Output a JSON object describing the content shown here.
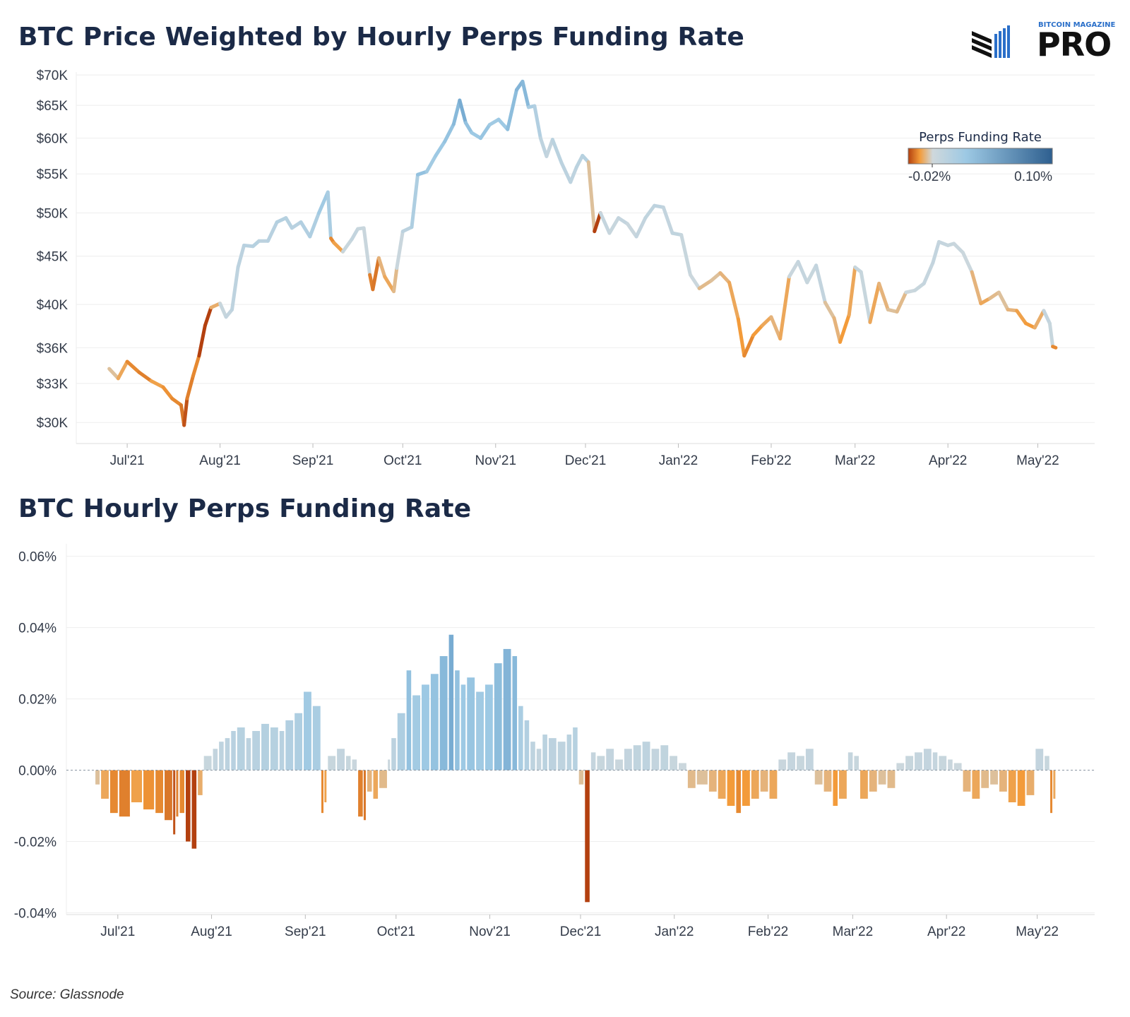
{
  "brand": {
    "small": "BITCOIN MAGAZINE",
    "big": "PRO"
  },
  "source": "Source: Glassnode",
  "colors": {
    "negative_strong": "#b3400f",
    "negative": "#f39b3a",
    "neutral": "#cfd8dc",
    "positive": "#9dc9e4",
    "positive_strong": "#3f7fb5",
    "grid": "#eeeeee",
    "text": "#1b2a47"
  },
  "chart_data": [
    {
      "type": "line",
      "title": "BTC Price Weighted by Hourly Perps Funding Rate",
      "xlabel": "",
      "ylabel": "",
      "x_ticks": [
        "Jul'21",
        "Aug'21",
        "Sep'21",
        "Oct'21",
        "Nov'21",
        "Dec'21",
        "Jan'22",
        "Feb'22",
        "Mar'22",
        "Apr'22",
        "May'22"
      ],
      "y_ticks": [
        "$70K",
        "$65K",
        "$60K",
        "$55K",
        "$50K",
        "$45K",
        "$40K",
        "$36K",
        "$33K",
        "$30K"
      ],
      "y_tick_values": [
        70000,
        65000,
        60000,
        55000,
        50000,
        45000,
        40000,
        36000,
        33000,
        30000
      ],
      "ylim": [
        28500,
        70500
      ],
      "y_scale": "log",
      "grid": true,
      "legend": {
        "title": "Perps Funding Rate",
        "min_label": "-0.02%",
        "max_label": "0.10%",
        "placement": "top-right"
      },
      "x": [
        "2021-06-25",
        "2021-06-28",
        "2021-07-01",
        "2021-07-05",
        "2021-07-09",
        "2021-07-13",
        "2021-07-16",
        "2021-07-19",
        "2021-07-20",
        "2021-07-21",
        "2021-07-23",
        "2021-07-25",
        "2021-07-27",
        "2021-07-29",
        "2021-08-01",
        "2021-08-03",
        "2021-08-05",
        "2021-08-07",
        "2021-08-09",
        "2021-08-12",
        "2021-08-14",
        "2021-08-17",
        "2021-08-20",
        "2021-08-23",
        "2021-08-25",
        "2021-08-28",
        "2021-08-31",
        "2021-09-03",
        "2021-09-06",
        "2021-09-07",
        "2021-09-08",
        "2021-09-11",
        "2021-09-14",
        "2021-09-16",
        "2021-09-18",
        "2021-09-20",
        "2021-09-21",
        "2021-09-23",
        "2021-09-25",
        "2021-09-28",
        "2021-09-29",
        "2021-10-01",
        "2021-10-04",
        "2021-10-06",
        "2021-10-09",
        "2021-10-12",
        "2021-10-15",
        "2021-10-18",
        "2021-10-20",
        "2021-10-22",
        "2021-10-24",
        "2021-10-27",
        "2021-10-30",
        "2021-11-02",
        "2021-11-05",
        "2021-11-08",
        "2021-11-10",
        "2021-11-12",
        "2021-11-14",
        "2021-11-16",
        "2021-11-18",
        "2021-11-20",
        "2021-11-23",
        "2021-11-26",
        "2021-11-28",
        "2021-11-30",
        "2021-12-02",
        "2021-12-04",
        "2021-12-06",
        "2021-12-09",
        "2021-12-12",
        "2021-12-15",
        "2021-12-18",
        "2021-12-21",
        "2021-12-24",
        "2021-12-27",
        "2021-12-30",
        "2022-01-02",
        "2022-01-05",
        "2022-01-08",
        "2022-01-12",
        "2022-01-15",
        "2022-01-18",
        "2022-01-21",
        "2022-01-23",
        "2022-01-26",
        "2022-01-29",
        "2022-02-01",
        "2022-02-04",
        "2022-02-07",
        "2022-02-10",
        "2022-02-13",
        "2022-02-16",
        "2022-02-19",
        "2022-02-22",
        "2022-02-24",
        "2022-02-27",
        "2022-03-01",
        "2022-03-03",
        "2022-03-06",
        "2022-03-09",
        "2022-03-12",
        "2022-03-15",
        "2022-03-18",
        "2022-03-21",
        "2022-03-24",
        "2022-03-27",
        "2022-03-29",
        "2022-04-01",
        "2022-04-03",
        "2022-04-06",
        "2022-04-09",
        "2022-04-12",
        "2022-04-15",
        "2022-04-18",
        "2022-04-21",
        "2022-04-24",
        "2022-04-27",
        "2022-04-30",
        "2022-05-03",
        "2022-05-05",
        "2022-05-06",
        "2022-05-07"
      ],
      "series": [
        {
          "values": [
            34200,
            33400,
            34800,
            33900,
            33200,
            32700,
            31800,
            31300,
            29800,
            31800,
            33600,
            35300,
            38000,
            39700,
            40100,
            38800,
            39500,
            43800,
            46200,
            46100,
            46700,
            46700,
            48900,
            49400,
            48200,
            48900,
            47200,
            50000,
            52600,
            47000,
            46500,
            45500,
            46900,
            48100,
            48200,
            43000,
            41500,
            44800,
            42800,
            41300,
            43700,
            47800,
            48300,
            54900,
            55300,
            57500,
            59500,
            62100,
            65800,
            62300,
            60800,
            60000,
            62000,
            62800,
            61300,
            67500,
            68900,
            64700,
            64900,
            60000,
            57400,
            59800,
            56500,
            53900,
            55900,
            57500,
            56600,
            47800,
            50000,
            47600,
            49400,
            48700,
            47200,
            49400,
            50900,
            50700,
            47600,
            47400,
            43000,
            41600,
            42400,
            43200,
            42200,
            38600,
            35300,
            37100,
            38000,
            38800,
            36800,
            42800,
            44400,
            42200,
            44000,
            40200,
            38700,
            36500,
            39000,
            43800,
            43300,
            38300,
            42100,
            39500,
            39300,
            41200,
            41400,
            42100,
            44300,
            46600,
            46200,
            46400,
            45400,
            43300,
            40100,
            40600,
            41200,
            39500,
            39400,
            38200,
            37800,
            39400,
            38200,
            36100,
            36000
          ]
        },
        {
          "name": "",
          "values": [
            -0.004,
            -0.008,
            -0.012,
            -0.013,
            -0.009,
            -0.011,
            -0.012,
            -0.014,
            -0.018,
            -0.013,
            -0.012,
            -0.02,
            -0.022,
            -0.007,
            0.004,
            0.006,
            0.008,
            0.009,
            0.011,
            0.012,
            0.009,
            0.011,
            0.013,
            0.012,
            0.011,
            0.014,
            0.016,
            0.022,
            0.018,
            -0.012,
            -0.009,
            0.004,
            0.006,
            0.004,
            0.003,
            -0.013,
            -0.014,
            -0.006,
            -0.008,
            -0.005,
            0.003,
            0.009,
            0.016,
            0.028,
            0.021,
            0.024,
            0.027,
            0.032,
            0.038,
            0.028,
            0.024,
            0.026,
            0.022,
            0.024,
            0.03,
            0.034,
            0.032,
            0.018,
            0.014,
            0.008,
            0.006,
            0.01,
            0.009,
            0.008,
            0.01,
            0.012,
            -0.004,
            -0.037,
            0.005,
            0.004,
            0.006,
            0.003,
            0.006,
            0.007,
            0.008,
            0.006,
            0.007,
            0.004,
            0.002,
            -0.005,
            -0.004,
            -0.006,
            -0.008,
            -0.01,
            -0.012,
            -0.01,
            -0.008,
            -0.006,
            -0.008,
            0.003,
            0.005,
            0.004,
            0.006,
            -0.004,
            -0.006,
            -0.01,
            -0.008,
            0.005,
            0.004,
            -0.008,
            -0.006,
            -0.004,
            -0.005,
            0.002,
            0.004,
            0.005,
            0.006,
            0.005,
            0.004,
            0.003,
            0.002,
            -0.006,
            -0.008,
            -0.005,
            -0.004,
            -0.006,
            -0.009,
            -0.01,
            -0.007,
            0.006,
            0.004,
            -0.012,
            -0.008
          ]
        }
      ]
    },
    {
      "type": "bar",
      "title": "BTC Hourly Perps Funding Rate",
      "xlabel": "",
      "ylabel": "",
      "x_ticks": [
        "Jul'21",
        "Aug'21",
        "Sep'21",
        "Oct'21",
        "Nov'21",
        "Dec'21",
        "Jan'22",
        "Feb'22",
        "Mar'22",
        "Apr'22",
        "May'22"
      ],
      "y_ticks": [
        "0.06%",
        "0.04%",
        "0.02%",
        "0.00%",
        "-0.02%",
        "-0.04%"
      ],
      "y_tick_values": [
        0.06,
        0.04,
        0.02,
        0.0,
        -0.02,
        -0.04
      ],
      "ylim": [
        -0.0405,
        0.0635
      ],
      "unit": "%",
      "grid": true,
      "values_note_ref": "series[1] of chart 1 (funding rate, %) shown as bars"
    }
  ]
}
